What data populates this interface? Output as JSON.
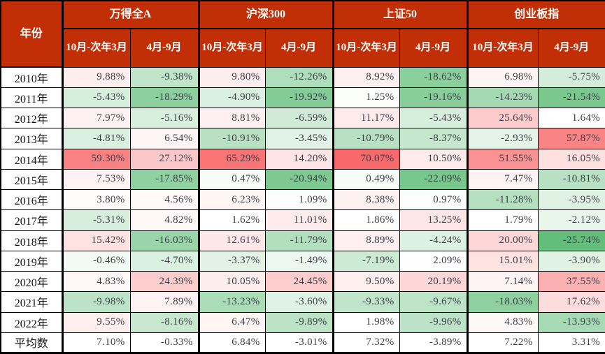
{
  "chart_data": {
    "type": "table",
    "row_header": "年份",
    "column_groups": [
      "万得全A",
      "沪深300",
      "上证50",
      "创业板指"
    ],
    "sub_columns": [
      "10月-次年3月",
      "4月-9月"
    ],
    "value_unit": "%",
    "rows": [
      {
        "label": "2010年",
        "values": [
          9.88,
          -9.38,
          9.8,
          -12.26,
          8.92,
          -18.62,
          6.98,
          -5.75
        ]
      },
      {
        "label": "2011年",
        "values": [
          -5.43,
          -18.29,
          -4.9,
          -19.92,
          1.25,
          -19.16,
          -14.23,
          -21.54
        ]
      },
      {
        "label": "2012年",
        "values": [
          7.97,
          -5.16,
          8.81,
          -6.59,
          11.17,
          -5.43,
          25.64,
          1.64
        ]
      },
      {
        "label": "2013年",
        "values": [
          -4.81,
          6.54,
          -10.91,
          -3.45,
          -10.79,
          -8.37,
          -2.93,
          57.87
        ]
      },
      {
        "label": "2014年",
        "values": [
          59.3,
          27.12,
          65.29,
          14.2,
          70.07,
          10.5,
          51.55,
          16.05
        ]
      },
      {
        "label": "2015年",
        "values": [
          7.53,
          -17.85,
          0.47,
          -20.94,
          0.49,
          -22.09,
          7.47,
          -10.81
        ]
      },
      {
        "label": "2016年",
        "values": [
          3.8,
          4.56,
          6.23,
          1.09,
          8.38,
          0.97,
          -11.28,
          -3.95
        ]
      },
      {
        "label": "2017年",
        "values": [
          -5.31,
          4.82,
          1.62,
          11.01,
          1.86,
          13.25,
          1.79,
          -2.12
        ]
      },
      {
        "label": "2018年",
        "values": [
          15.42,
          -16.03,
          12.61,
          -11.79,
          8.89,
          -4.24,
          20.0,
          -25.74
        ]
      },
      {
        "label": "2019年",
        "values": [
          -0.46,
          -4.7,
          -3.37,
          -1.49,
          -7.19,
          2.09,
          15.01,
          -3.9
        ]
      },
      {
        "label": "2020年",
        "values": [
          4.83,
          24.39,
          10.05,
          24.45,
          9.5,
          20.19,
          7.14,
          37.55
        ]
      },
      {
        "label": "2021年",
        "values": [
          -9.98,
          7.89,
          -13.23,
          -3.6,
          -9.33,
          -9.67,
          -18.03,
          17.62
        ]
      },
      {
        "label": "2022年",
        "values": [
          9.55,
          -8.16,
          6.47,
          -9.89,
          1.98,
          -9.96,
          4.83,
          -13.93
        ]
      },
      {
        "label": "平均数",
        "values": [
          7.1,
          -0.33,
          6.84,
          -3.01,
          7.32,
          -3.89,
          7.22,
          3.31
        ],
        "no_fill": true
      }
    ]
  },
  "conditional_format": {
    "min_value": -25.74,
    "mid_value": 1.8,
    "max_value": 70.07,
    "min_color": "#63BE7B",
    "mid_color": "#FFFFFF",
    "max_color": "#F8696B"
  },
  "colors": {
    "header_bg": "#C22F06",
    "header_text": "#FFFFFF",
    "border": "#000000",
    "value_text": "#3D3D45",
    "year_text": "#141414"
  }
}
